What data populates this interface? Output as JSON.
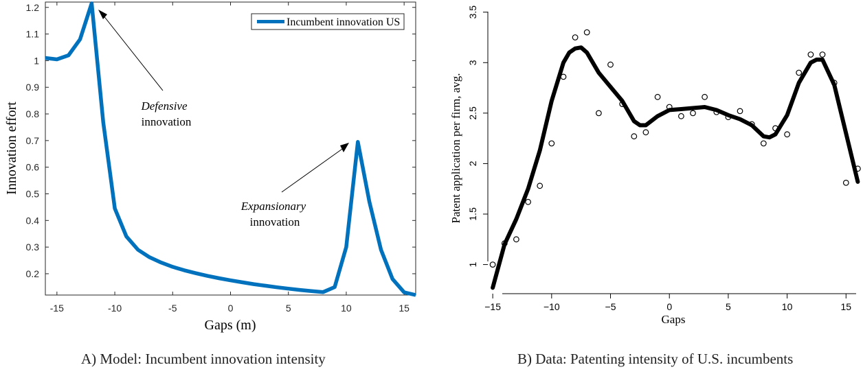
{
  "chart_data": [
    {
      "type": "line",
      "title": "",
      "xlabel": "Gaps (m)",
      "ylabel": "Innovation effort",
      "xlim": [
        -16,
        16
      ],
      "ylim": [
        0.12,
        1.22
      ],
      "xticks": [
        -15,
        -10,
        -5,
        0,
        5,
        10,
        15
      ],
      "xtick_labels": [
        "-15",
        "-10",
        "-5",
        "0",
        "5",
        "10",
        "15"
      ],
      "yticks": [
        0.2,
        0.3,
        0.4,
        0.5,
        0.6,
        0.7,
        0.8,
        0.9,
        1,
        1.1,
        1.2
      ],
      "ytick_labels": [
        "0.2",
        "0.3",
        "0.4",
        "0.5",
        "0.6",
        "0.7",
        "0.8",
        "0.9",
        "1",
        "1.1",
        "1.2"
      ],
      "grid": false,
      "legend": "top-right",
      "color": "#0072BD",
      "series": [
        {
          "name": "Incumbent innovation US",
          "x": [
            -16,
            -15,
            -14,
            -13,
            -12,
            -11,
            -10,
            -9,
            -8,
            -7,
            -6,
            -5,
            -4,
            -3,
            -2,
            -1,
            0,
            1,
            2,
            3,
            4,
            5,
            6,
            7,
            8,
            9,
            10,
            11,
            12,
            13,
            14,
            15,
            16
          ],
          "y": [
            1.01,
            1.005,
            1.02,
            1.08,
            1.215,
            0.77,
            0.445,
            0.34,
            0.29,
            0.262,
            0.242,
            0.226,
            0.213,
            0.202,
            0.192,
            0.183,
            0.175,
            0.168,
            0.161,
            0.155,
            0.149,
            0.144,
            0.139,
            0.135,
            0.131,
            0.15,
            0.3,
            0.695,
            0.47,
            0.29,
            0.18,
            0.13,
            0.12
          ]
        }
      ],
      "annotations": [
        {
          "italic": "Defensive",
          "text": "innovation",
          "arrow_to": [
            -11.5,
            1.19
          ]
        },
        {
          "italic": "Expansionary",
          "text": "innovation",
          "arrow_to": [
            10.0,
            0.68
          ]
        }
      ]
    },
    {
      "type": "scatter",
      "title": "",
      "xlabel": "Gaps",
      "ylabel": "Patent application per firm, avg.",
      "xlim": [
        -16,
        16.5
      ],
      "ylim": [
        0.63,
        3.6
      ],
      "xticks": [
        -15,
        -10,
        -5,
        0,
        5,
        10,
        15
      ],
      "xtick_labels": [
        "−15",
        "−10",
        "−5",
        "0",
        "5",
        "10",
        "15"
      ],
      "yticks": [
        1,
        1.5,
        2,
        2.5,
        3,
        3.5
      ],
      "ytick_labels": [
        "1",
        "1.5",
        "2",
        "2.5",
        "3",
        "3.5"
      ],
      "grid": false,
      "points": {
        "x": [
          -15,
          -14,
          -13,
          -12,
          -11,
          -10,
          -9,
          -8,
          -7,
          -6,
          -5,
          -4,
          -3,
          -2,
          -1,
          0,
          1,
          2,
          3,
          4,
          5,
          6,
          7,
          8,
          9,
          10,
          11,
          12,
          13,
          14,
          15,
          16
        ],
        "y": [
          1.0,
          1.21,
          1.25,
          1.62,
          1.78,
          2.2,
          2.86,
          3.25,
          3.3,
          2.5,
          2.98,
          2.59,
          2.27,
          2.31,
          2.66,
          2.56,
          2.47,
          2.5,
          2.66,
          2.51,
          2.46,
          2.52,
          2.39,
          2.2,
          2.35,
          2.29,
          2.9,
          3.08,
          3.08,
          2.8,
          1.81,
          1.95
        ]
      },
      "smooth": {
        "x": [
          -15,
          -14,
          -13,
          -12,
          -11,
          -10,
          -9,
          -8.5,
          -8,
          -7.5,
          -7,
          -6,
          -5,
          -4,
          -3,
          -2.5,
          -2,
          -1,
          0,
          1,
          2,
          3,
          4,
          5,
          6,
          7,
          8,
          8.5,
          9,
          10,
          11,
          12,
          12.5,
          13,
          14,
          15,
          16
        ],
        "y": [
          0.77,
          1.2,
          1.45,
          1.75,
          2.13,
          2.62,
          3.0,
          3.1,
          3.14,
          3.15,
          3.1,
          2.9,
          2.76,
          2.62,
          2.42,
          2.38,
          2.38,
          2.47,
          2.53,
          2.54,
          2.55,
          2.56,
          2.53,
          2.48,
          2.44,
          2.38,
          2.27,
          2.26,
          2.29,
          2.48,
          2.8,
          3.0,
          3.03,
          3.03,
          2.78,
          2.3,
          1.82
        ]
      }
    }
  ],
  "captions": {
    "a": {
      "letter": "A",
      "text": ") Model: Incumbent innovation intensity"
    },
    "b": {
      "letter": "B",
      "text": ") Data: Patenting intensity of U.S. incumbents"
    }
  }
}
